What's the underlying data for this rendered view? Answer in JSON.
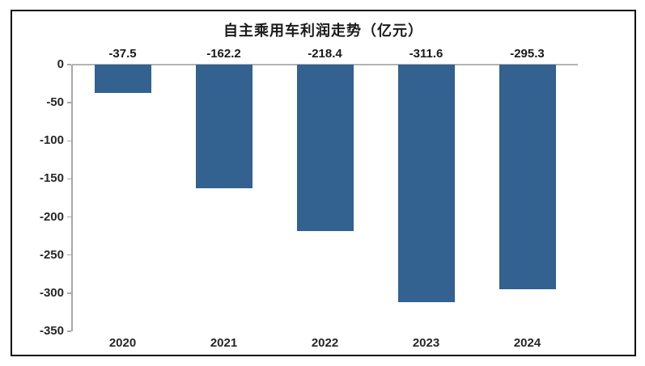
{
  "chart_data": {
    "type": "bar",
    "title": "自主乘用车利润走势（亿元）",
    "categories": [
      "2020",
      "2021",
      "2022",
      "2023",
      "2024"
    ],
    "values": [
      -37.5,
      -162.2,
      -218.4,
      -311.6,
      -295.3
    ],
    "data_labels": [
      "-37.5",
      "-162.2",
      "-218.4",
      "-311.6",
      "-295.3"
    ],
    "xlabel": "",
    "ylabel": "",
    "ylim": [
      -350,
      0
    ],
    "y_ticks": [
      0,
      -50,
      -100,
      -150,
      -200,
      -250,
      -300,
      -350
    ],
    "grid": false,
    "legend": "none",
    "colors": {
      "bar": "#336190",
      "axis": "#a8a8a8",
      "zero_line": "#b3b3b3",
      "text": "#1a1a1a",
      "frame_border": "#0d0d0d",
      "background": "#ffffff"
    }
  }
}
